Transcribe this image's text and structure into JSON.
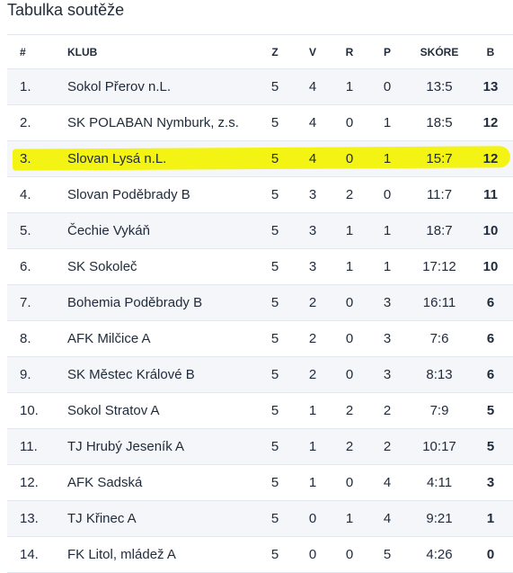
{
  "title": "Tabulka soutěže",
  "headers": {
    "pos": "#",
    "club": "KLUB",
    "z": "Z",
    "v": "V",
    "r": "R",
    "p": "P",
    "score": "SKÓRE",
    "points": "B"
  },
  "rows": [
    {
      "pos": "1.",
      "club": "Sokol Přerov n.L.",
      "z": "5",
      "v": "4",
      "r": "1",
      "p": "0",
      "score": "13:5",
      "points": "13"
    },
    {
      "pos": "2.",
      "club": "SK POLABAN Nymburk, z.s.",
      "z": "5",
      "v": "4",
      "r": "0",
      "p": "1",
      "score": "18:5",
      "points": "12"
    },
    {
      "pos": "3.",
      "club": "Slovan Lysá n.L.",
      "z": "5",
      "v": "4",
      "r": "0",
      "p": "1",
      "score": "15:7",
      "points": "12"
    },
    {
      "pos": "4.",
      "club": "Slovan Poděbrady B",
      "z": "5",
      "v": "3",
      "r": "2",
      "p": "0",
      "score": "11:7",
      "points": "11"
    },
    {
      "pos": "5.",
      "club": "Čechie Vykáň",
      "z": "5",
      "v": "3",
      "r": "1",
      "p": "1",
      "score": "18:7",
      "points": "10"
    },
    {
      "pos": "6.",
      "club": "SK Sokoleč",
      "z": "5",
      "v": "3",
      "r": "1",
      "p": "1",
      "score": "17:12",
      "points": "10"
    },
    {
      "pos": "7.",
      "club": "Bohemia Poděbrady B",
      "z": "5",
      "v": "2",
      "r": "0",
      "p": "3",
      "score": "16:11",
      "points": "6"
    },
    {
      "pos": "8.",
      "club": "AFK Milčice A",
      "z": "5",
      "v": "2",
      "r": "0",
      "p": "3",
      "score": "7:6",
      "points": "6"
    },
    {
      "pos": "9.",
      "club": "SK Městec Králové B",
      "z": "5",
      "v": "2",
      "r": "0",
      "p": "3",
      "score": "8:13",
      "points": "6"
    },
    {
      "pos": "10.",
      "club": "Sokol Stratov A",
      "z": "5",
      "v": "1",
      "r": "2",
      "p": "2",
      "score": "7:9",
      "points": "5"
    },
    {
      "pos": "11.",
      "club": "TJ Hrubý Jeseník A",
      "z": "5",
      "v": "1",
      "r": "2",
      "p": "2",
      "score": "10:17",
      "points": "5"
    },
    {
      "pos": "12.",
      "club": "AFK Sadská",
      "z": "5",
      "v": "1",
      "r": "0",
      "p": "4",
      "score": "4:11",
      "points": "3"
    },
    {
      "pos": "13.",
      "club": "TJ Křinec A",
      "z": "5",
      "v": "0",
      "r": "1",
      "p": "4",
      "score": "9:21",
      "points": "1"
    },
    {
      "pos": "14.",
      "club": "FK Litol, mládež A",
      "z": "5",
      "v": "0",
      "r": "0",
      "p": "5",
      "score": "4:26",
      "points": "0"
    }
  ],
  "highlight_color": "#f3f300"
}
